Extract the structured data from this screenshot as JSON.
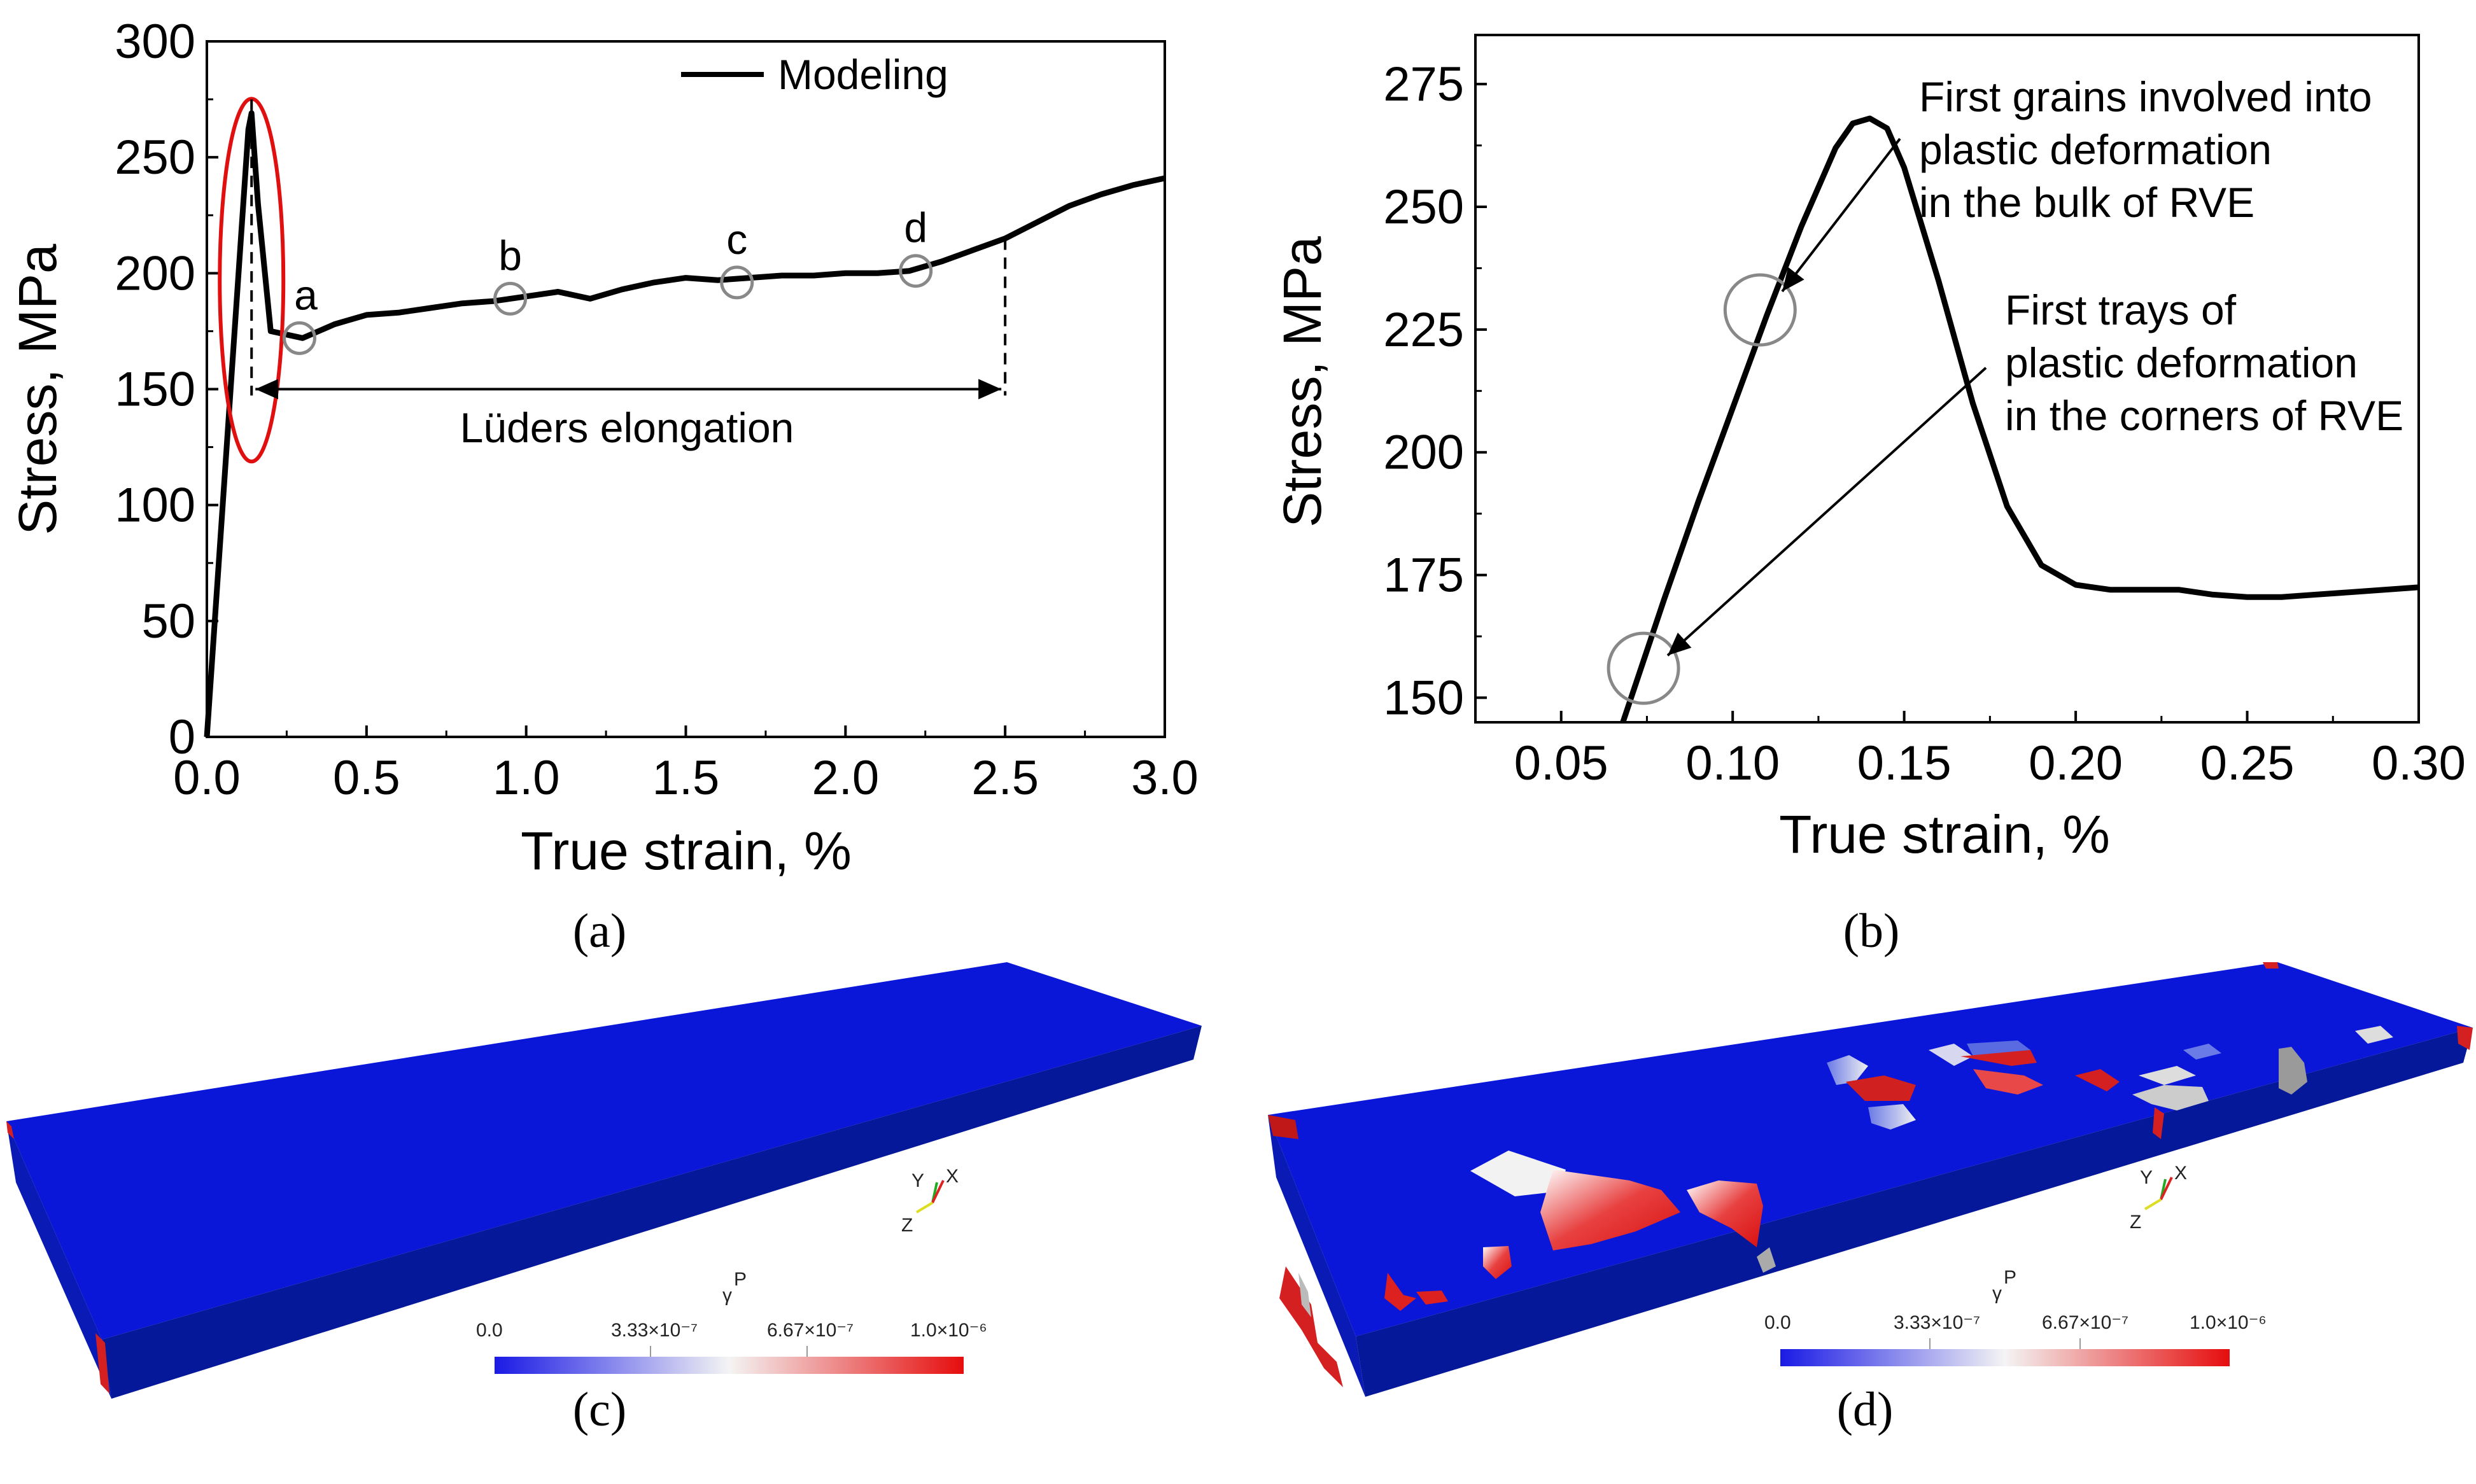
{
  "chart_data": [
    {
      "type": "line",
      "panel": "(a)",
      "xlabel": "True strain, %",
      "ylabel": "Stress, MPa",
      "xlim": [
        0,
        3.0
      ],
      "ylim": [
        0,
        300
      ],
      "xticks": [
        "0.0",
        "0.5",
        "1.0",
        "1.5",
        "2.0",
        "2.5",
        "3.0"
      ],
      "yticks": [
        "0",
        "50",
        "100",
        "150",
        "200",
        "250",
        "300"
      ],
      "legend": "Modeling",
      "legend_position": "top-right",
      "series": [
        {
          "name": "Modeling",
          "x": [
            0.0,
            0.13,
            0.14,
            0.16,
            0.2,
            0.3,
            0.4,
            0.5,
            0.6,
            0.7,
            0.8,
            0.9,
            1.0,
            1.1,
            1.2,
            1.3,
            1.4,
            1.5,
            1.6,
            1.7,
            1.8,
            1.9,
            2.0,
            2.1,
            2.2,
            2.3,
            2.4,
            2.5,
            2.6,
            2.7,
            2.8,
            2.9,
            3.0
          ],
          "y": [
            0,
            262,
            269,
            230,
            175,
            172,
            178,
            182,
            183,
            185,
            187,
            188,
            190,
            192,
            189,
            193,
            196,
            198,
            197,
            198,
            199,
            199,
            200,
            200,
            201,
            205,
            210,
            215,
            222,
            229,
            234,
            238,
            241
          ]
        }
      ],
      "points": [
        {
          "label": "a",
          "x": 0.29,
          "y": 172
        },
        {
          "label": "b",
          "x": 0.95,
          "y": 189
        },
        {
          "label": "c",
          "x": 1.66,
          "y": 196
        },
        {
          "label": "d",
          "x": 2.22,
          "y": 201
        }
      ],
      "highlight_ellipse": {
        "x": 0.13,
        "y": 197
      },
      "luders": {
        "label": "Lüders elongation",
        "x_start": 0.14,
        "x_end": 2.5,
        "y": 150,
        "peak_y": 275,
        "end_y": 215
      }
    },
    {
      "type": "line",
      "panel": "(b)",
      "xlabel": "True strain, %",
      "ylabel": "Stress, MPa",
      "xlim": [
        0.025,
        0.3
      ],
      "ylim": [
        145,
        285
      ],
      "xticks": [
        "0.05",
        "0.10",
        "0.15",
        "0.20",
        "0.25",
        "0.30"
      ],
      "yticks": [
        "150",
        "175",
        "200",
        "225",
        "250",
        "275"
      ],
      "series": [
        {
          "name": "Modeling",
          "x": [
            0.068,
            0.08,
            0.09,
            0.1,
            0.11,
            0.12,
            0.13,
            0.135,
            0.14,
            0.145,
            0.15,
            0.16,
            0.17,
            0.18,
            0.19,
            0.2,
            0.21,
            0.22,
            0.23,
            0.24,
            0.25,
            0.26,
            0.27,
            0.28,
            0.29,
            0.3
          ],
          "y": [
            145,
            170,
            190,
            209,
            228,
            246,
            262,
            267,
            268,
            266,
            258,
            235,
            210,
            189,
            177,
            173,
            172,
            172,
            172,
            171,
            170.5,
            170.5,
            171,
            171.5,
            172,
            172.5
          ]
        }
      ],
      "circles": [
        {
          "x": 0.108,
          "y": 229
        },
        {
          "x": 0.074,
          "y": 156
        }
      ],
      "annotations": [
        {
          "lines": [
            "First grains involved into",
            "plastic deformation",
            "in the bulk of RVE"
          ]
        },
        {
          "lines": [
            "First trays of",
            "plastic deformation",
            "in the corners of RVE"
          ]
        }
      ]
    }
  ],
  "panel_c": {
    "label": "(c)",
    "colorbar_title": "γ",
    "colorbar_sup": "P",
    "colorbar_ticks": [
      "0.0",
      "3.33×10⁻⁷",
      "6.67×10⁻⁷",
      "1.0×10⁻⁶"
    ],
    "axes": {
      "y": "Y",
      "x": "X",
      "z": "Z"
    },
    "colors": {
      "low": "#1a1ae6",
      "mid": "#f2f2f2",
      "high": "#e60d0d",
      "slab_top": "#0a16d8",
      "slab_side": "#051a8f"
    }
  },
  "panel_d": {
    "label": "(d)",
    "colorbar_title": "γ",
    "colorbar_sup": "P",
    "colorbar_ticks": [
      "0.0",
      "3.33×10⁻⁷",
      "6.67×10⁻⁷",
      "1.0×10⁻⁶"
    ],
    "axes": {
      "y": "Y",
      "x": "X",
      "z": "Z"
    }
  }
}
